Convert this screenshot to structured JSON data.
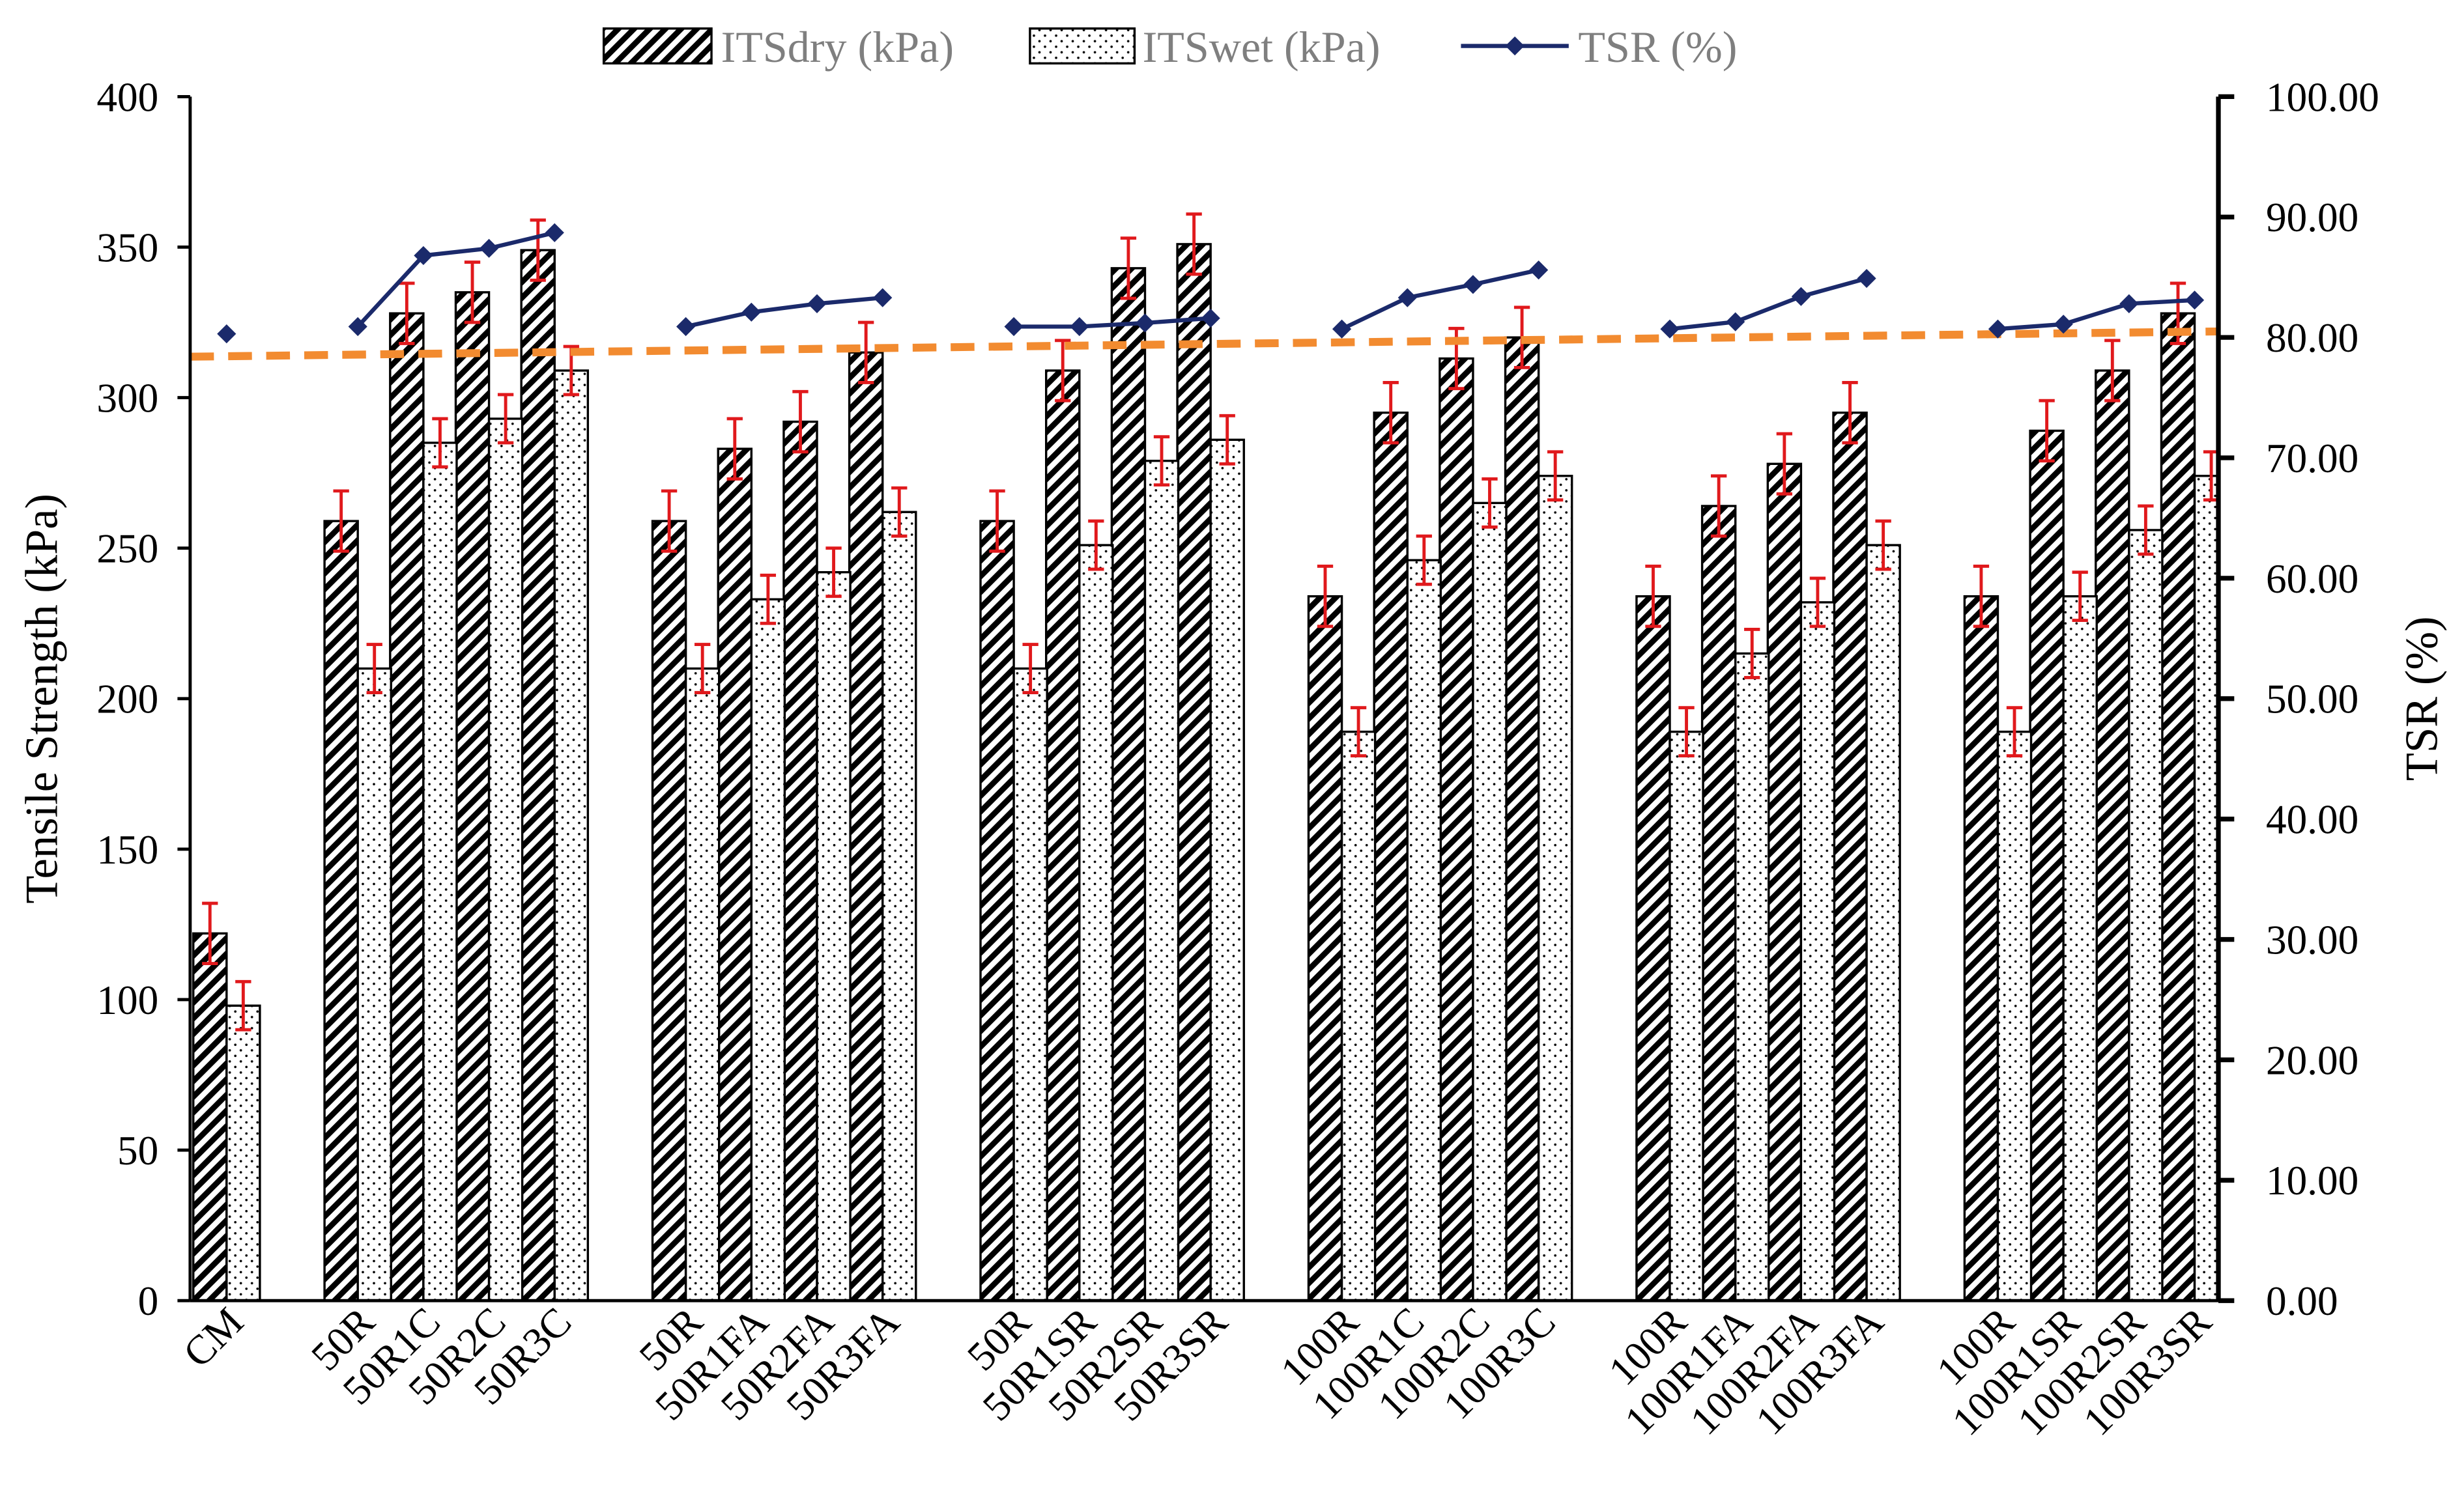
{
  "colors": {
    "tsr_line": "#1b2a6b",
    "error_bar": "#e0191c",
    "trendline": "#f28b30",
    "legend_text": "#7f7f7f",
    "right_axis_title": "#8c8c8c",
    "axis": "#000000"
  },
  "chart_data": {
    "type": "bar",
    "categories": [
      "CM",
      "",
      "50R",
      "50R1C",
      "50R2C",
      "50R3C",
      "",
      "50R",
      "50R1FA",
      "50R2FA",
      "50R3FA",
      "",
      "50R",
      "50R1SR",
      "50R2SR",
      "50R3SR",
      "",
      "100R",
      "100R1C",
      "100R2C",
      "100R3C",
      "",
      "100R",
      "100R1FA",
      "100R2FA",
      "100R3FA",
      "",
      "100R",
      "100R1SR",
      "100R2SR",
      "100R3SR"
    ],
    "series": [
      {
        "name": "ITSdry (kPa)",
        "type": "bar",
        "axis": "left",
        "pattern": "diagonal-hatch",
        "values": [
          122,
          null,
          259,
          328,
          335,
          349,
          null,
          259,
          283,
          292,
          315,
          null,
          259,
          309,
          343,
          351,
          null,
          234,
          295,
          313,
          320,
          null,
          234,
          264,
          278,
          295,
          null,
          234,
          289,
          309,
          328
        ],
        "error": [
          10,
          null,
          10,
          10,
          10,
          10,
          null,
          10,
          10,
          10,
          10,
          null,
          10,
          10,
          10,
          10,
          null,
          10,
          10,
          10,
          10,
          null,
          10,
          10,
          10,
          10,
          null,
          10,
          10,
          10,
          10
        ]
      },
      {
        "name": "ITSwet (kPa)",
        "type": "bar",
        "axis": "left",
        "pattern": "dots",
        "values": [
          98,
          null,
          210,
          285,
          293,
          309,
          null,
          210,
          233,
          242,
          262,
          null,
          210,
          251,
          279,
          286,
          null,
          189,
          246,
          265,
          274,
          null,
          189,
          215,
          232,
          251,
          null,
          189,
          234,
          256,
          274
        ],
        "error": [
          8,
          null,
          8,
          8,
          8,
          8,
          null,
          8,
          8,
          8,
          8,
          null,
          8,
          8,
          8,
          8,
          null,
          8,
          8,
          8,
          8,
          null,
          8,
          8,
          8,
          8,
          null,
          8,
          8,
          8,
          8
        ]
      },
      {
        "name": "TSR (%)",
        "type": "line",
        "axis": "right",
        "marker": "diamond",
        "values": [
          80.3,
          null,
          80.9,
          86.8,
          87.4,
          88.7,
          null,
          80.9,
          82.1,
          82.8,
          83.3,
          null,
          80.9,
          80.9,
          81.2,
          81.6,
          null,
          80.7,
          83.3,
          84.4,
          85.6,
          null,
          80.7,
          81.3,
          83.4,
          84.9,
          null,
          80.7,
          81.1,
          82.8,
          83.1
        ]
      }
    ],
    "trendline": {
      "series": "TSR (%)",
      "type": "linear",
      "style": "dashed",
      "start": 78.4,
      "end": 80.5
    },
    "xlabel": "",
    "ylabel": "Tensile Strength (kPa)",
    "y2label": "TSR (%)",
    "ylim": [
      0,
      400
    ],
    "y2lim": [
      0,
      100
    ],
    "yticks": [
      "0",
      "50",
      "100",
      "150",
      "200",
      "250",
      "300",
      "350",
      "400"
    ],
    "y2ticks": [
      "0.00",
      "10.00",
      "20.00",
      "30.00",
      "40.00",
      "50.00",
      "60.00",
      "70.00",
      "80.00",
      "90.00",
      "100.00"
    ],
    "grid": false,
    "legend_position": "top"
  }
}
